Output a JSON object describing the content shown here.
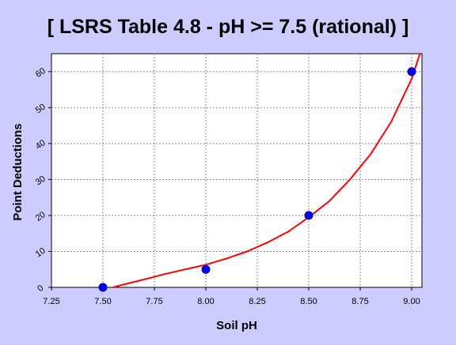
{
  "chart_data": {
    "type": "scatter",
    "title": "[ LSRS Table 4.8 - pH >= 7.5 (rational) ]",
    "xlabel": "Soil pH",
    "ylabel": "Point Deductions",
    "xlim": [
      7.25,
      9.05
    ],
    "ylim": [
      0,
      65
    ],
    "x_ticks": [
      7.25,
      7.5,
      7.75,
      8.0,
      8.25,
      8.5,
      8.75,
      9.0
    ],
    "x_tick_labels": [
      "7.25",
      "7.50",
      "7.75",
      "8.00",
      "8.25",
      "8.50",
      "8.75",
      "9.00"
    ],
    "y_ticks": [
      0,
      10,
      20,
      30,
      40,
      50,
      60
    ],
    "y_tick_labels": [
      "0",
      "10",
      "20",
      "30",
      "40",
      "50",
      "60"
    ],
    "grid": true,
    "points": {
      "x": [
        7.5,
        8.0,
        8.5,
        9.0
      ],
      "y": [
        0,
        5,
        20,
        60
      ],
      "color": "#0000ff"
    },
    "fit_curve": {
      "type": "rational",
      "color": "#ff0000",
      "x": [
        7.55,
        7.6,
        7.7,
        7.8,
        7.9,
        8.0,
        8.1,
        8.2,
        8.3,
        8.4,
        8.5,
        8.6,
        8.7,
        8.8,
        8.9,
        9.0,
        9.04
      ],
      "y": [
        0,
        0.8,
        2.2,
        3.7,
        5.0,
        6.3,
        8.0,
        10.0,
        12.5,
        15.5,
        19.5,
        24.0,
        30.0,
        37.0,
        46.0,
        58.0,
        65.0
      ]
    },
    "colors": {
      "background": "#ccccff",
      "plot_area": "#ffffff"
    }
  }
}
